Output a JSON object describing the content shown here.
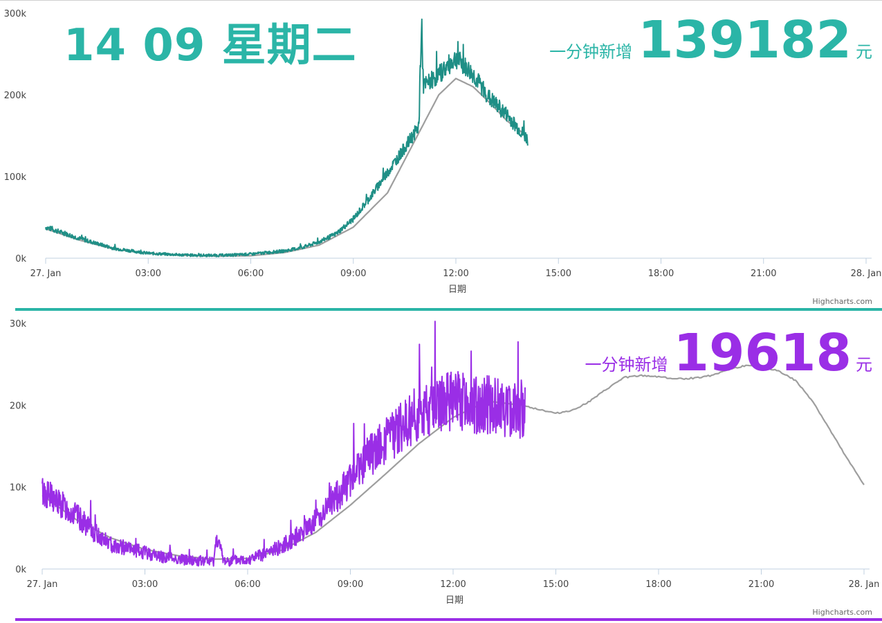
{
  "colors": {
    "teal": "#2bb5a7",
    "teal_line": "#1f8f86",
    "purple": "#9a2ee6",
    "gray_line": "#9e9e9e",
    "axis": "#c0d0e0"
  },
  "header": {
    "date_text": "14 09 星期二",
    "top_counter_label": "一分钟新增",
    "top_counter_value": "139182",
    "top_counter_unit": "元",
    "bottom_counter_label": "一分钟新增",
    "bottom_counter_value": "19618",
    "bottom_counter_unit": "元"
  },
  "credits": "Highcharts.com",
  "chart_data": [
    {
      "type": "line",
      "xlabel": "日期",
      "ylabel": "",
      "x_ticks": [
        "27. Jan",
        "03:00",
        "06:00",
        "09:00",
        "12:00",
        "15:00",
        "18:00",
        "21:00",
        "28. Jan"
      ],
      "y_ticks": [
        "0k",
        "100k",
        "200k",
        "300k"
      ],
      "xlim_hours": [
        0,
        24
      ],
      "ylim": [
        0,
        300000
      ],
      "grid": false,
      "series": [
        {
          "role": "today",
          "x_hours": [
            0,
            0.5,
            1,
            1.5,
            2,
            2.5,
            3,
            3.5,
            4,
            4.5,
            5,
            5.5,
            6,
            6.5,
            7,
            7.5,
            8,
            8.5,
            9,
            9.5,
            10,
            10.5,
            10.9,
            11,
            11.05,
            11.5,
            12,
            12.5,
            13,
            13.5,
            14,
            14.1
          ],
          "values": [
            38000,
            31000,
            24000,
            18000,
            12000,
            9000,
            6000,
            5000,
            4000,
            3500,
            3500,
            4000,
            5000,
            7000,
            9000,
            13000,
            20000,
            30000,
            48000,
            75000,
            105000,
            135000,
            160000,
            285000,
            210000,
            225000,
            245000,
            225000,
            195000,
            175000,
            150000,
            145000
          ]
        },
        {
          "role": "reference",
          "x_hours": [
            0,
            1,
            2,
            3,
            4,
            5,
            6,
            7,
            8,
            9,
            10,
            11,
            11.5,
            12,
            12.5,
            13,
            13.5,
            14
          ],
          "values": [
            36000,
            22000,
            11000,
            6000,
            3500,
            2500,
            3000,
            7000,
            16000,
            38000,
            80000,
            160000,
            200000,
            220000,
            210000,
            190000,
            168000,
            152000
          ]
        }
      ]
    },
    {
      "type": "line",
      "xlabel": "日期",
      "ylabel": "",
      "x_ticks": [
        "27. Jan",
        "03:00",
        "06:00",
        "09:00",
        "12:00",
        "15:00",
        "18:00",
        "21:00",
        "28. Jan"
      ],
      "y_ticks": [
        "0k",
        "10k",
        "20k",
        "30k"
      ],
      "xlim_hours": [
        0,
        24
      ],
      "ylim": [
        0,
        30000
      ],
      "grid": false,
      "series": [
        {
          "role": "today",
          "x_hours": [
            0,
            0.5,
            1,
            1.5,
            2,
            2.5,
            3,
            3.5,
            4,
            4.5,
            5,
            5.1,
            5.3,
            5.5,
            6,
            6.5,
            7,
            7.5,
            8,
            8.5,
            9,
            9.5,
            10,
            10.5,
            11,
            11.5,
            12,
            12.5,
            13,
            13.5,
            14,
            14.1
          ],
          "values": [
            9500,
            8000,
            6500,
            4500,
            3000,
            2500,
            2000,
            1500,
            1200,
            1000,
            900,
            4000,
            1000,
            1000,
            1200,
            1800,
            2800,
            4200,
            6000,
            8200,
            11000,
            13500,
            15500,
            17500,
            19000,
            20000,
            20500,
            20200,
            20000,
            19800,
            19500,
            19000
          ]
        },
        {
          "role": "reference",
          "x_hours": [
            0,
            1,
            2,
            3,
            4,
            5,
            6,
            7,
            8,
            9,
            10,
            11,
            12,
            13,
            14,
            14.5,
            15,
            15.5,
            16,
            16.5,
            17,
            17.5,
            18,
            18.5,
            19,
            19.5,
            20,
            20.5,
            21,
            21.5,
            22,
            22.5,
            23,
            23.5,
            24
          ],
          "values": [
            9000,
            6000,
            3800,
            2400,
            1600,
            1200,
            1300,
            2300,
            4500,
            7800,
            11500,
            15300,
            18500,
            20500,
            20000,
            19500,
            19000,
            19400,
            20500,
            22000,
            23400,
            23600,
            23500,
            23200,
            23300,
            23600,
            24300,
            24800,
            24700,
            24200,
            23000,
            20500,
            17000,
            13500,
            10300
          ]
        }
      ]
    }
  ]
}
